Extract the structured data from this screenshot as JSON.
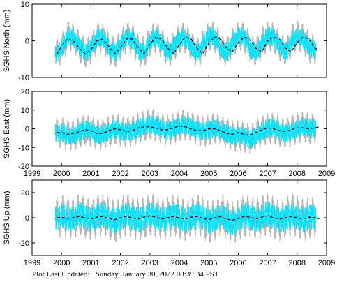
{
  "footer": {
    "label": "Plot Last Updated:",
    "timestamp": "Sunday, January 30, 2022 08:39:34 PST"
  },
  "colors": {
    "data": "#00e5ff",
    "errorbar": "#b4b4b4",
    "model": "#000000",
    "axis": "#000000"
  },
  "chart_data": [
    {
      "type": "scatter",
      "ylabel": "SGHS North (mm)",
      "xlim": [
        1999,
        2009
      ],
      "ylim": [
        -10,
        10
      ],
      "xticks": [
        "1999",
        "2000",
        "2001",
        "2002",
        "2003",
        "2004",
        "2005",
        "2006",
        "2007",
        "2008",
        "2009"
      ],
      "yticks": [
        "-10",
        "0",
        "10"
      ],
      "xtick_labels_shown": false,
      "grid": false,
      "series": [
        {
          "x": [
            1999.8,
            2000.05,
            2000.25,
            2000.45,
            2000.65,
            2000.85,
            2001.05,
            2001.25,
            2001.45,
            2001.65,
            2001.85,
            2002.05,
            2002.25,
            2002.45,
            2002.65,
            2002.85,
            2003.05,
            2003.25,
            2003.45,
            2003.65,
            2003.85,
            2004.05,
            2004.25,
            2004.45,
            2004.65,
            2004.85,
            2005.05,
            2005.25,
            2005.45,
            2005.65,
            2005.85,
            2006.05,
            2006.25,
            2006.45,
            2006.65,
            2006.85,
            2007.05,
            2007.25,
            2007.45,
            2007.65,
            2007.85,
            2008.05,
            2008.25,
            2008.45,
            2008.65
          ],
          "y": [
            -4.0,
            -1.5,
            1.5,
            0.5,
            -2.0,
            -3.5,
            -1.5,
            1.0,
            0.5,
            -2.5,
            -3.0,
            -0.5,
            1.0,
            0.0,
            -3.0,
            -2.5,
            0.5,
            1.0,
            -1.5,
            -3.5,
            -1.0,
            1.0,
            0.5,
            -2.0,
            -3.5,
            -0.5,
            1.5,
            0.5,
            -2.5,
            -3.0,
            0.0,
            1.5,
            0.5,
            -2.5,
            -3.0,
            0.0,
            1.5,
            0.5,
            -2.0,
            -3.0,
            0.5,
            1.5,
            0.0,
            -2.0,
            -2.5
          ]
        }
      ],
      "model": {
        "x": [
          1999.85,
          2000.0,
          2000.2,
          2000.4,
          2000.6,
          2000.8,
          2001.0,
          2001.2,
          2001.4,
          2001.6,
          2001.8,
          2002.0,
          2002.2,
          2002.4,
          2002.6,
          2002.8,
          2003.0,
          2003.2,
          2003.4,
          2003.6,
          2003.8,
          2004.0,
          2004.2,
          2004.4,
          2004.6,
          2004.8,
          2005.0,
          2005.2,
          2005.4,
          2005.6,
          2005.8,
          2006.0,
          2006.2,
          2006.4,
          2006.6,
          2006.8,
          2007.0,
          2007.2,
          2007.4,
          2007.6,
          2007.8,
          2008.0,
          2008.2,
          2008.4,
          2008.6,
          2008.75
        ],
        "y": [
          -3.5,
          -1.5,
          0.5,
          0.0,
          -2.0,
          -3.5,
          -2.5,
          0.0,
          0.5,
          -1.5,
          -3.5,
          -2.0,
          0.5,
          0.5,
          -2.0,
          -3.5,
          -1.0,
          1.0,
          0.5,
          -2.0,
          -3.5,
          -1.0,
          1.0,
          0.5,
          -2.0,
          -3.5,
          -0.5,
          1.0,
          0.5,
          -2.0,
          -3.0,
          -0.5,
          1.0,
          0.5,
          -2.0,
          -3.0,
          0.0,
          1.0,
          0.5,
          -2.0,
          -3.0,
          -0.5,
          1.0,
          0.5,
          -2.0,
          -2.5
        ]
      }
    },
    {
      "type": "scatter",
      "ylabel": "SGHS East (mm)",
      "xlim": [
        1999,
        2009
      ],
      "ylim": [
        -20,
        20
      ],
      "xticks": [
        "1999",
        "2000",
        "2001",
        "2002",
        "2003",
        "2004",
        "2005",
        "2006",
        "2007",
        "2008",
        "2009"
      ],
      "yticks": [
        "-20",
        "-10",
        "0",
        "10",
        "20"
      ],
      "xtick_labels_shown": true,
      "grid": false,
      "series": [
        {
          "x": [
            1999.8,
            2000.05,
            2000.25,
            2000.45,
            2000.65,
            2000.85,
            2001.05,
            2001.25,
            2001.45,
            2001.65,
            2001.85,
            2002.05,
            2002.25,
            2002.45,
            2002.65,
            2002.85,
            2003.05,
            2003.25,
            2003.45,
            2003.65,
            2003.85,
            2004.05,
            2004.25,
            2004.45,
            2004.65,
            2004.85,
            2005.05,
            2005.25,
            2005.45,
            2005.65,
            2005.85,
            2006.05,
            2006.25,
            2006.45,
            2006.65,
            2006.85,
            2007.05,
            2007.25,
            2007.45,
            2007.65,
            2007.85,
            2008.05,
            2008.25,
            2008.45,
            2008.65
          ],
          "y": [
            -2.5,
            -2.0,
            -4.0,
            -3.0,
            -1.5,
            -0.5,
            -2.0,
            -3.5,
            -2.5,
            -1.0,
            0.0,
            -1.5,
            -2.0,
            -1.0,
            0.5,
            2.0,
            2.5,
            1.0,
            -0.5,
            -1.0,
            0.5,
            2.0,
            2.0,
            0.5,
            -1.0,
            -1.5,
            -0.5,
            0.5,
            -1.0,
            -3.0,
            -4.0,
            -3.5,
            -4.5,
            -5.5,
            -3.0,
            -1.0,
            0.5,
            0.0,
            -2.0,
            -2.5,
            -1.0,
            0.5,
            1.0,
            0.0,
            0.5
          ]
        }
      ],
      "model": {
        "x": [
          1999.85,
          2000.0,
          2000.2,
          2000.4,
          2000.6,
          2000.8,
          2001.0,
          2001.2,
          2001.4,
          2001.6,
          2001.8,
          2002.0,
          2002.2,
          2002.4,
          2002.6,
          2002.8,
          2003.0,
          2003.2,
          2003.4,
          2003.6,
          2003.8,
          2004.0,
          2004.2,
          2004.4,
          2004.6,
          2004.8,
          2005.0,
          2005.2,
          2005.4,
          2005.6,
          2005.8,
          2006.0,
          2006.2,
          2006.4,
          2006.6,
          2006.8,
          2007.0,
          2007.2,
          2007.4,
          2007.6,
          2007.8,
          2008.0,
          2008.2,
          2008.4,
          2008.6,
          2008.75
        ],
        "y": [
          -2.0,
          -2.0,
          -3.0,
          -2.5,
          -1.5,
          -0.5,
          -1.0,
          -2.5,
          -2.5,
          -1.0,
          0.0,
          -0.5,
          -1.5,
          -1.0,
          0.5,
          1.0,
          1.0,
          0.5,
          -0.5,
          -0.5,
          0.5,
          1.5,
          1.0,
          0.0,
          -1.0,
          -1.0,
          0.0,
          0.0,
          -1.0,
          -2.5,
          -3.0,
          -2.0,
          -3.0,
          -3.5,
          -2.0,
          -0.5,
          0.5,
          0.0,
          -1.0,
          -1.5,
          -0.5,
          0.5,
          0.5,
          0.0,
          0.5,
          1.0
        ]
      }
    },
    {
      "type": "scatter",
      "ylabel": "SGHS Up (mm)",
      "xlim": [
        1999,
        2009
      ],
      "ylim": [
        -30,
        30
      ],
      "xticks": [
        "1999",
        "2000",
        "2001",
        "2002",
        "2003",
        "2004",
        "2005",
        "2006",
        "2007",
        "2008",
        "2009"
      ],
      "yticks": [
        "-20",
        "0",
        "20"
      ],
      "xtick_labels_shown": true,
      "grid": false,
      "series": [
        {
          "x": [
            1999.8,
            2000.05,
            2000.25,
            2000.45,
            2000.65,
            2000.85,
            2001.05,
            2001.25,
            2001.45,
            2001.65,
            2001.85,
            2002.05,
            2002.25,
            2002.45,
            2002.65,
            2002.85,
            2003.05,
            2003.25,
            2003.45,
            2003.65,
            2003.85,
            2004.05,
            2004.25,
            2004.45,
            2004.65,
            2004.85,
            2005.05,
            2005.25,
            2005.45,
            2005.65,
            2005.85,
            2006.05,
            2006.25,
            2006.45,
            2006.65,
            2006.85,
            2007.05,
            2007.25,
            2007.45,
            2007.65,
            2007.85,
            2008.05,
            2008.25,
            2008.45,
            2008.65
          ],
          "y": [
            -1.0,
            2.0,
            -1.0,
            0.5,
            3.0,
            -0.5,
            -2.0,
            1.5,
            2.5,
            -1.0,
            -2.5,
            0.5,
            2.0,
            -0.5,
            -1.5,
            1.0,
            3.0,
            0.0,
            -2.0,
            0.5,
            2.5,
            -0.5,
            -2.5,
            1.0,
            2.0,
            -1.0,
            -3.5,
            -1.0,
            2.5,
            -3.0,
            -4.0,
            -1.0,
            2.0,
            0.5,
            -2.0,
            1.5,
            3.0,
            -0.5,
            -2.5,
            0.5,
            2.5,
            0.0,
            -2.0,
            1.0,
            0.0
          ]
        }
      ],
      "model": {
        "x": [
          1999.85,
          2000.0,
          2000.2,
          2000.4,
          2000.6,
          2000.8,
          2001.0,
          2001.2,
          2001.4,
          2001.6,
          2001.8,
          2002.0,
          2002.2,
          2002.4,
          2002.6,
          2002.8,
          2003.0,
          2003.2,
          2003.4,
          2003.6,
          2003.8,
          2004.0,
          2004.2,
          2004.4,
          2004.6,
          2004.8,
          2005.0,
          2005.2,
          2005.4,
          2005.6,
          2005.8,
          2006.0,
          2006.2,
          2006.4,
          2006.6,
          2006.8,
          2007.0,
          2007.2,
          2007.4,
          2007.6,
          2007.8,
          2008.0,
          2008.2,
          2008.4,
          2008.6,
          2008.75
        ],
        "y": [
          0.0,
          0.5,
          -0.5,
          0.0,
          1.0,
          0.0,
          -1.0,
          0.5,
          1.0,
          -0.5,
          -1.5,
          0.0,
          1.0,
          0.0,
          -1.0,
          0.5,
          1.5,
          0.5,
          -1.0,
          0.0,
          1.0,
          0.0,
          -1.0,
          0.5,
          1.0,
          -0.5,
          -1.5,
          0.0,
          1.0,
          -1.0,
          -2.0,
          -0.5,
          1.0,
          0.5,
          -1.0,
          0.5,
          1.5,
          0.0,
          -1.0,
          0.0,
          1.0,
          0.0,
          -1.0,
          0.5,
          0.0,
          -1.0
        ]
      }
    }
  ]
}
